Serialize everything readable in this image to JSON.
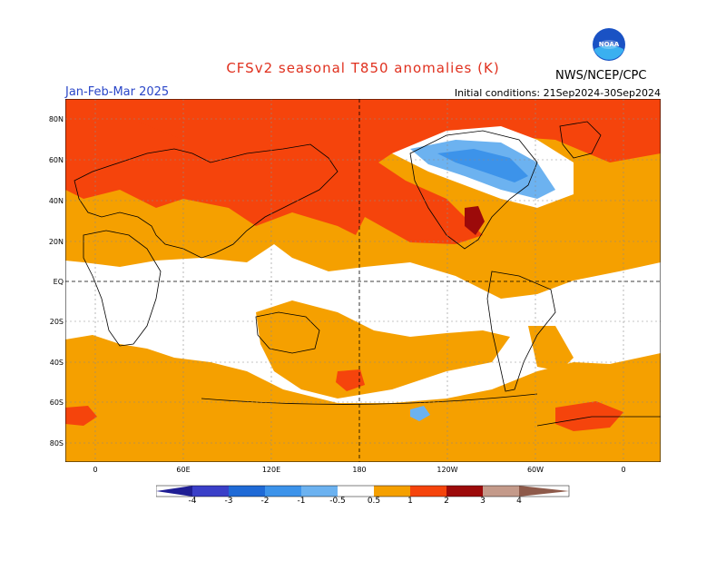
{
  "title": "CFSv2 seasonal T850 anomalies (K)",
  "period": "Jan-Feb-Mar 2025",
  "initial_conditions": "Initial conditions: 21Sep2024-30Sep2024",
  "agency": "NWS/NCEP/CPC",
  "logo_text": "NOAA",
  "lat_labels": [
    "80N",
    "60N",
    "40N",
    "20N",
    "EQ",
    "20S",
    "40S",
    "60S",
    "80S"
  ],
  "lon_labels": [
    "0",
    "60E",
    "120E",
    "180",
    "120W",
    "60W",
    "0"
  ],
  "colorbar": {
    "labels": [
      "-4",
      "-3",
      "-2",
      "-1",
      "-0.5",
      "0.5",
      "1",
      "2",
      "3",
      "4"
    ],
    "colors": [
      "#1f1e94",
      "#3a3fc8",
      "#1f6ad6",
      "#3c93ea",
      "#6cb2f0",
      "#ffffff",
      "#f5a000",
      "#f5440c",
      "#9c0a0a",
      "#c49a8a",
      "#8e5a4a"
    ]
  },
  "colors": {
    "anomaly_05_1": "#f5a000",
    "anomaly_1_2": "#f5440c",
    "anomaly_2_3": "#9c0a0a",
    "anomaly_neg_05": "#6cb2f0",
    "anomaly_neg_1": "#3c93ea",
    "grid": "#8a8a8a",
    "coast": "#000000"
  }
}
